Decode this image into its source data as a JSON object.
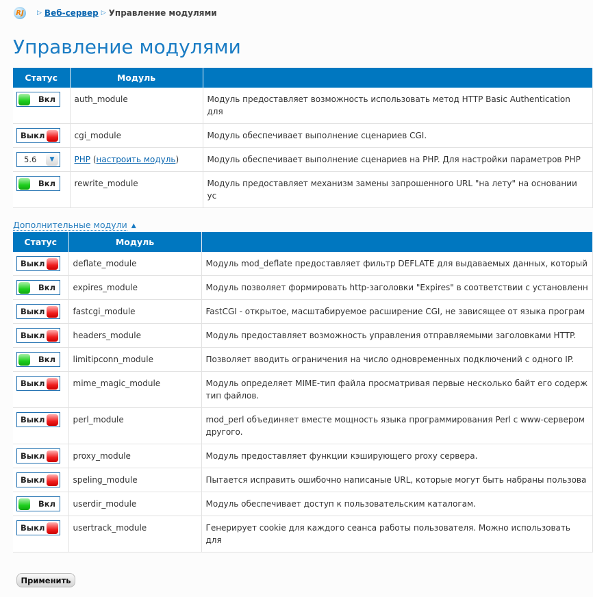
{
  "breadcrumb": {
    "logo": "RJ",
    "parent": "Веб-сервер",
    "current": "Управление модулями"
  },
  "page_title": "Управление модулями",
  "columns": {
    "status": "Статус",
    "module": "Модуль",
    "description": ""
  },
  "labels": {
    "on": "Вкл",
    "off": "Выкл"
  },
  "main_modules": [
    {
      "status": "on",
      "name": "auth_module",
      "desc": "Модуль предоставляет возможность использовать метод HTTP Basic Authentication для"
    },
    {
      "status": "off",
      "name": "cgi_module",
      "desc": "Модуль обеспечивает выполнение сценариев CGI."
    },
    {
      "status": "select",
      "select_value": "5.6",
      "name": "PHP",
      "config_link": "настроить модуль",
      "desc": "Модуль обеспечивает выполнение сценариев на PHP. Для настройки параметров PHP"
    },
    {
      "status": "on",
      "name": "rewrite_module",
      "desc": "Модуль предоставляет механизм замены запрошенного URL \"на лету\" на основании ус"
    }
  ],
  "extra_toggle": "Дополнительные модули",
  "extra_modules": [
    {
      "status": "off",
      "name": "deflate_module",
      "desc": "Модуль mod_deflate предоставляет фильтр DEFLATE для выдаваемых данных, который"
    },
    {
      "status": "on",
      "name": "expires_module",
      "desc": "Модуль позволяет формировать http-заголовки \"Expires\" в соответствии с установленн"
    },
    {
      "status": "off",
      "name": "fastcgi_module",
      "desc": "FastCGI - открытое, масштабируемое расширение CGI, не зависящее от языка програм"
    },
    {
      "status": "off",
      "name": "headers_module",
      "desc": "Модуль предоставляет возможность управления отправляемыми заголовками HTTP."
    },
    {
      "status": "on",
      "name": "limitipconn_module",
      "desc": "Позволяет вводить ограничения на число одновременных подключений с одного IP."
    },
    {
      "status": "off",
      "name": "mime_magic_module",
      "desc": "Модуль определяет MIME-тип файла просматривая первые несколько байт его содерж",
      "desc2": "тип файлов."
    },
    {
      "status": "off",
      "name": "perl_module",
      "desc": "mod_perl объединяет вместе мощность языка программирования Perl с www-сервером",
      "desc2": "другого."
    },
    {
      "status": "off",
      "name": "proxy_module",
      "desc": "Модуль предоставляет функции кэширующего proxy сервера."
    },
    {
      "status": "off",
      "name": "speling_module",
      "desc": "Пытается исправить ошибочно написаные URL, которые могут быть набраны пользова"
    },
    {
      "status": "on",
      "name": "userdir_module",
      "desc": "Модуль обеспечивает доступ к пользовательским каталогам."
    },
    {
      "status": "off",
      "name": "usertrack_module",
      "desc": "Генерирует cookie для каждого сеанса работы пользователя. Можно использовать для"
    }
  ],
  "apply_label": "Применить",
  "colors": {
    "header": "#0077c0",
    "title": "#1a7cc4",
    "on": "#1fcf1f",
    "off": "#f02020"
  }
}
